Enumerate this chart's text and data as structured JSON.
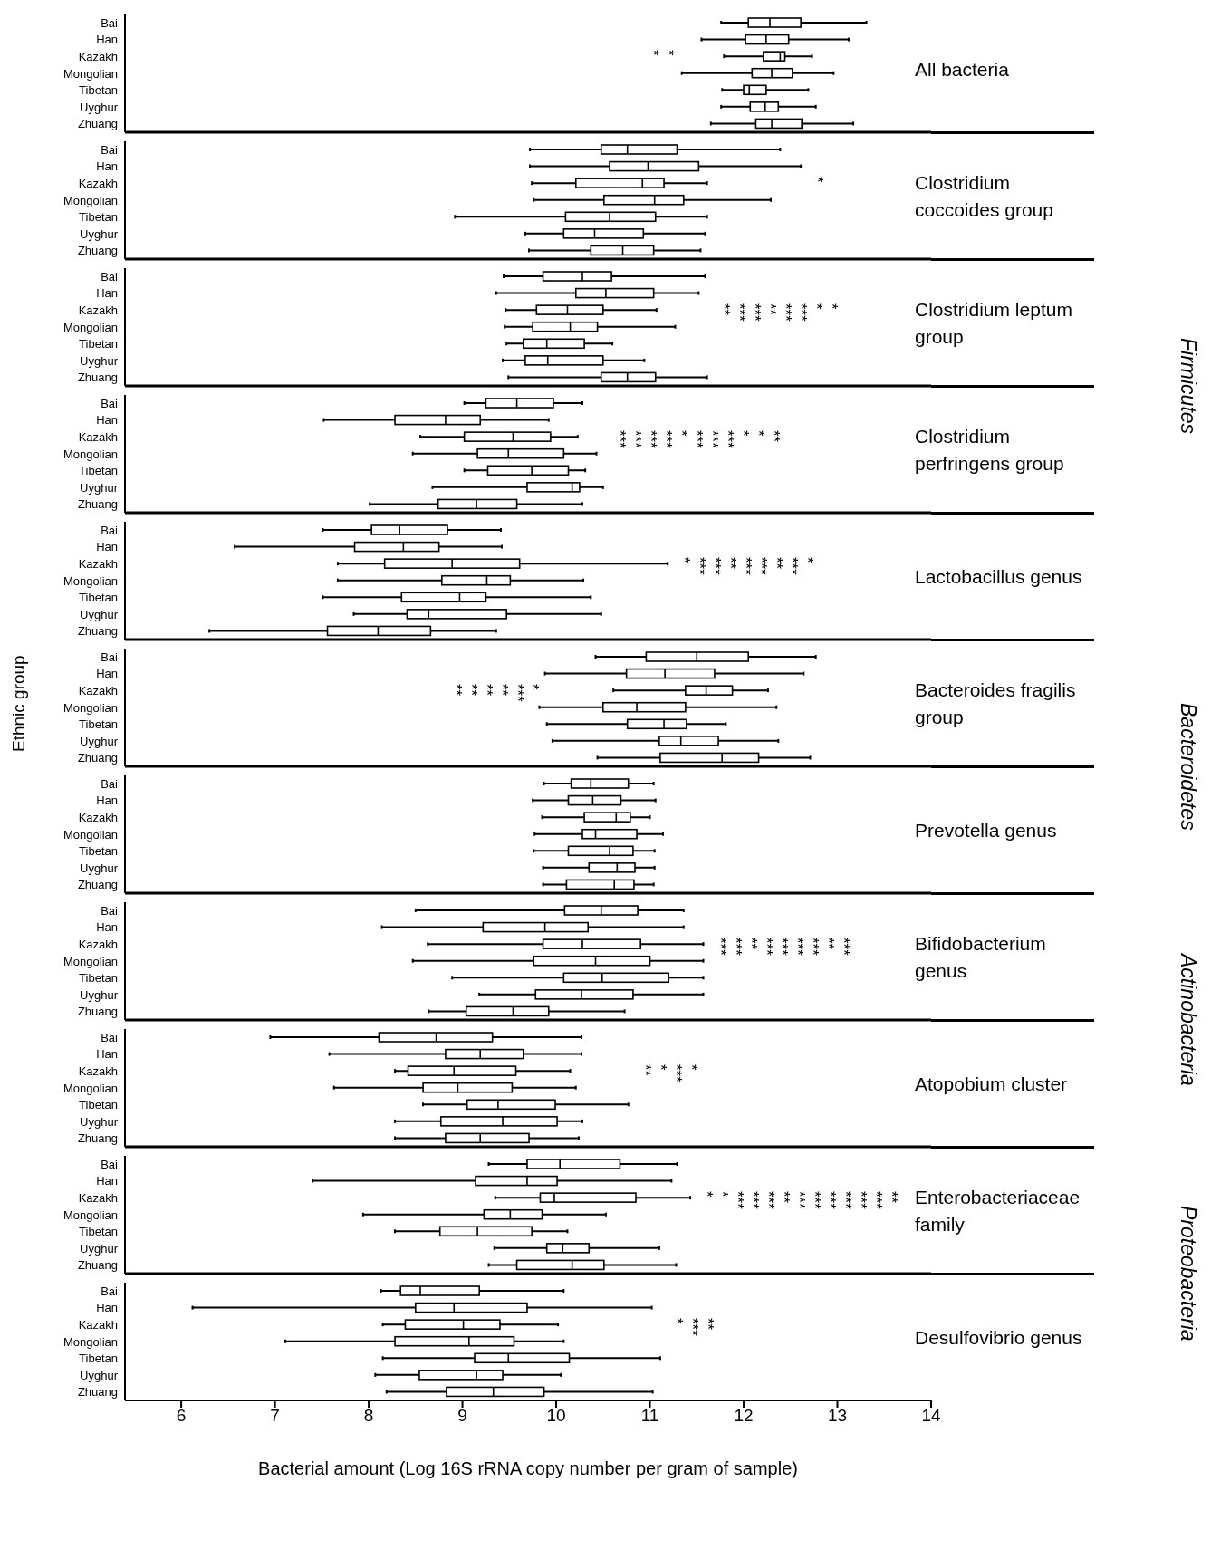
{
  "chart_data": [
    {
      "type": "box",
      "orientation": "horizontal",
      "title": "All bacteria",
      "tick_labels": "y",
      "xlim": [
        5.4,
        14
      ],
      "categories": [
        "Bai",
        "Han",
        "Kazakh",
        "Mongolian",
        "Tibetan",
        "Uyghur",
        "Zhuang"
      ],
      "annotations": [
        "*",
        "*"
      ],
      "boxes": [
        {
          "low": 11.76,
          "q1": 12.05,
          "median": 12.28,
          "q3": 12.61,
          "high": 13.31
        },
        {
          "low": 11.55,
          "q1": 12.02,
          "median": 12.24,
          "q3": 12.48,
          "high": 13.12
        },
        {
          "low": 11.79,
          "q1": 12.21,
          "median": 12.39,
          "q3": 12.44,
          "high": 12.73
        },
        {
          "low": 11.34,
          "q1": 12.09,
          "median": 12.3,
          "q3": 12.52,
          "high": 12.96
        },
        {
          "low": 11.77,
          "q1": 12.0,
          "median": 12.06,
          "q3": 12.24,
          "high": 12.69
        },
        {
          "low": 11.76,
          "q1": 12.07,
          "median": 12.23,
          "q3": 12.37,
          "high": 12.77
        },
        {
          "low": 11.65,
          "q1": 12.13,
          "median": 12.3,
          "q3": 12.62,
          "high": 13.17
        }
      ]
    },
    {
      "type": "box",
      "orientation": "horizontal",
      "title": "Clostridium coccoides group",
      "tick_labels": "y",
      "xlim": [
        5.4,
        14
      ],
      "categories": [
        "Bai",
        "Han",
        "Kazakh",
        "Mongolian",
        "Tibetan",
        "Uyghur",
        "Zhuang"
      ],
      "annotations": [
        "*"
      ],
      "boxes": [
        {
          "low": 9.72,
          "q1": 10.48,
          "median": 10.76,
          "q3": 11.29,
          "high": 12.39
        },
        {
          "low": 9.72,
          "q1": 10.57,
          "median": 10.98,
          "q3": 11.52,
          "high": 12.61
        },
        {
          "low": 9.74,
          "q1": 10.21,
          "median": 10.92,
          "q3": 11.15,
          "high": 11.61
        },
        {
          "low": 9.76,
          "q1": 10.51,
          "median": 11.05,
          "q3": 11.36,
          "high": 12.29
        },
        {
          "low": 8.92,
          "q1": 10.1,
          "median": 10.57,
          "q3": 11.06,
          "high": 11.61
        },
        {
          "low": 9.67,
          "q1": 10.08,
          "median": 10.41,
          "q3": 10.93,
          "high": 11.59
        },
        {
          "low": 9.71,
          "q1": 10.37,
          "median": 10.71,
          "q3": 11.04,
          "high": 11.54
        }
      ]
    },
    {
      "type": "box",
      "orientation": "horizontal",
      "title": "Clostridium leptum group",
      "y2label": "Firmicutes",
      "tick_labels": "y",
      "xlim": [
        5.4,
        14
      ],
      "categories": [
        "Bai",
        "Han",
        "Kazakh",
        "Mongolian",
        "Tibetan",
        "Uyghur",
        "Zhuang"
      ],
      "annotations": [
        "**",
        "***",
        "***",
        "**",
        "***",
        "***",
        "*",
        "*"
      ],
      "boxes": [
        {
          "low": 9.44,
          "q1": 9.86,
          "median": 10.28,
          "q3": 10.59,
          "high": 11.59
        },
        {
          "low": 9.36,
          "q1": 10.21,
          "median": 10.53,
          "q3": 11.04,
          "high": 11.52
        },
        {
          "low": 9.46,
          "q1": 9.79,
          "median": 10.12,
          "q3": 10.5,
          "high": 11.07
        },
        {
          "low": 9.45,
          "q1": 9.75,
          "median": 10.15,
          "q3": 10.44,
          "high": 11.27
        },
        {
          "low": 9.47,
          "q1": 9.65,
          "median": 9.9,
          "q3": 10.3,
          "high": 10.6
        },
        {
          "low": 9.43,
          "q1": 9.67,
          "median": 9.91,
          "q3": 10.5,
          "high": 10.94
        },
        {
          "low": 9.49,
          "q1": 10.48,
          "median": 10.76,
          "q3": 11.06,
          "high": 11.61
        }
      ]
    },
    {
      "type": "box",
      "orientation": "horizontal",
      "title": "Clostridium perfringens group",
      "tick_labels": "y",
      "xlim": [
        5.4,
        14
      ],
      "categories": [
        "Bai",
        "Han",
        "Kazakh",
        "Mongolian",
        "Tibetan",
        "Uyghur",
        "Zhuang"
      ],
      "annotations": [
        "***",
        "***",
        "***",
        "***",
        "*",
        "***",
        "***",
        "***",
        "*",
        "*",
        "**"
      ],
      "boxes": [
        {
          "low": 9.02,
          "q1": 9.25,
          "median": 9.58,
          "q3": 9.97,
          "high": 10.28
        },
        {
          "low": 7.52,
          "q1": 8.28,
          "median": 8.82,
          "q3": 9.19,
          "high": 9.92
        },
        {
          "low": 8.55,
          "q1": 9.02,
          "median": 9.54,
          "q3": 9.94,
          "high": 10.23
        },
        {
          "low": 8.47,
          "q1": 9.16,
          "median": 9.49,
          "q3": 10.08,
          "high": 10.43
        },
        {
          "low": 9.02,
          "q1": 9.27,
          "median": 9.74,
          "q3": 10.13,
          "high": 10.31
        },
        {
          "low": 8.68,
          "q1": 9.69,
          "median": 10.17,
          "q3": 10.25,
          "high": 10.5
        },
        {
          "low": 8.01,
          "q1": 8.74,
          "median": 9.15,
          "q3": 9.58,
          "high": 10.28
        }
      ]
    },
    {
      "type": "box",
      "orientation": "horizontal",
      "title": "Lactobacillus genus",
      "tick_labels": "y",
      "xlim": [
        5.4,
        14
      ],
      "categories": [
        "Bai",
        "Han",
        "Kazakh",
        "Mongolian",
        "Tibetan",
        "Uyghur",
        "Zhuang"
      ],
      "annotations": [
        "*",
        "***",
        "***",
        "**",
        "***",
        "***",
        "**",
        "***",
        "*"
      ],
      "boxes": [
        {
          "low": 7.51,
          "q1": 8.03,
          "median": 8.33,
          "q3": 8.84,
          "high": 9.41
        },
        {
          "low": 6.57,
          "q1": 7.85,
          "median": 8.37,
          "q3": 8.75,
          "high": 9.42
        },
        {
          "low": 7.67,
          "q1": 8.17,
          "median": 8.89,
          "q3": 9.61,
          "high": 11.19
        },
        {
          "low": 7.67,
          "q1": 8.78,
          "median": 9.26,
          "q3": 9.51,
          "high": 10.29
        },
        {
          "low": 7.51,
          "q1": 8.35,
          "median": 8.97,
          "q3": 9.25,
          "high": 10.37
        },
        {
          "low": 7.84,
          "q1": 8.41,
          "median": 8.64,
          "q3": 9.47,
          "high": 10.48
        },
        {
          "low": 6.3,
          "q1": 7.56,
          "median": 8.1,
          "q3": 8.66,
          "high": 9.36
        }
      ]
    },
    {
      "type": "box",
      "orientation": "horizontal",
      "title": "Bacteroides fragilis group",
      "ylabel": "Ethnic group",
      "y2label": "Bacteroidetes",
      "tick_labels": "y",
      "xlim": [
        5.4,
        14
      ],
      "categories": [
        "Bai",
        "Han",
        "Kazakh",
        "Mongolian",
        "Tibetan",
        "Uyghur",
        "Zhuang"
      ],
      "annotations": [
        "**",
        "**",
        "**",
        "**",
        "***",
        "*"
      ],
      "boxes": [
        {
          "low": 10.42,
          "q1": 10.96,
          "median": 11.5,
          "q3": 12.05,
          "high": 12.77
        },
        {
          "low": 9.88,
          "q1": 10.75,
          "median": 11.16,
          "q3": 11.69,
          "high": 12.64
        },
        {
          "low": 10.61,
          "q1": 11.38,
          "median": 11.6,
          "q3": 11.88,
          "high": 12.26
        },
        {
          "low": 9.82,
          "q1": 10.5,
          "median": 10.86,
          "q3": 11.38,
          "high": 12.35
        },
        {
          "low": 9.9,
          "q1": 10.76,
          "median": 11.15,
          "q3": 11.39,
          "high": 11.81
        },
        {
          "low": 9.96,
          "q1": 11.1,
          "median": 11.33,
          "q3": 11.73,
          "high": 12.37
        },
        {
          "low": 10.44,
          "q1": 11.11,
          "median": 11.77,
          "q3": 12.16,
          "high": 12.71
        }
      ]
    },
    {
      "type": "box",
      "orientation": "horizontal",
      "title": "Prevotella genus",
      "tick_labels": "y",
      "xlim": [
        5.4,
        14
      ],
      "categories": [
        "Bai",
        "Han",
        "Kazakh",
        "Mongolian",
        "Tibetan",
        "Uyghur",
        "Zhuang"
      ],
      "boxes": [
        {
          "low": 9.87,
          "q1": 10.16,
          "median": 10.37,
          "q3": 10.77,
          "high": 11.04
        },
        {
          "low": 9.75,
          "q1": 10.13,
          "median": 10.39,
          "q3": 10.69,
          "high": 11.06
        },
        {
          "low": 9.85,
          "q1": 10.3,
          "median": 10.64,
          "q3": 10.79,
          "high": 11.0
        },
        {
          "low": 9.77,
          "q1": 10.28,
          "median": 10.42,
          "q3": 10.86,
          "high": 11.14
        },
        {
          "low": 9.76,
          "q1": 10.13,
          "median": 10.57,
          "q3": 10.82,
          "high": 11.05
        },
        {
          "low": 9.86,
          "q1": 10.35,
          "median": 10.65,
          "q3": 10.84,
          "high": 11.05
        },
        {
          "low": 9.86,
          "q1": 10.11,
          "median": 10.62,
          "q3": 10.83,
          "high": 11.04
        }
      ]
    },
    {
      "type": "box",
      "orientation": "horizontal",
      "title": "Bifidobacterium genus",
      "y2label": "Actinobacteria",
      "tick_labels": "y",
      "xlim": [
        5.4,
        14
      ],
      "categories": [
        "Bai",
        "Han",
        "Kazakh",
        "Mongolian",
        "Tibetan",
        "Uyghur",
        "Zhuang"
      ],
      "annotations": [
        "***",
        "***",
        "**",
        "***",
        "***",
        "***",
        "***",
        "**",
        "***"
      ],
      "boxes": [
        {
          "low": 8.5,
          "q1": 10.09,
          "median": 10.48,
          "q3": 10.87,
          "high": 11.36
        },
        {
          "low": 8.14,
          "q1": 9.22,
          "median": 9.88,
          "q3": 10.34,
          "high": 11.36
        },
        {
          "low": 8.63,
          "q1": 9.86,
          "median": 10.28,
          "q3": 10.9,
          "high": 11.57
        },
        {
          "low": 8.47,
          "q1": 9.76,
          "median": 10.42,
          "q3": 11.0,
          "high": 11.57
        },
        {
          "low": 8.89,
          "q1": 10.08,
          "median": 10.49,
          "q3": 11.2,
          "high": 11.57
        },
        {
          "low": 9.18,
          "q1": 9.78,
          "median": 10.27,
          "q3": 10.82,
          "high": 11.57
        },
        {
          "low": 8.64,
          "q1": 9.04,
          "median": 9.54,
          "q3": 9.92,
          "high": 10.73
        }
      ]
    },
    {
      "type": "box",
      "orientation": "horizontal",
      "title": "Atopobium cluster",
      "tick_labels": "y",
      "xlim": [
        5.4,
        14
      ],
      "categories": [
        "Bai",
        "Han",
        "Kazakh",
        "Mongolian",
        "Tibetan",
        "Uyghur",
        "Zhuang"
      ],
      "annotations": [
        "**",
        "*",
        "***",
        "*"
      ],
      "boxes": [
        {
          "low": 6.95,
          "q1": 8.11,
          "median": 8.72,
          "q3": 9.32,
          "high": 10.27
        },
        {
          "low": 7.58,
          "q1": 8.82,
          "median": 9.19,
          "q3": 9.65,
          "high": 10.27
        },
        {
          "low": 8.28,
          "q1": 8.42,
          "median": 8.91,
          "q3": 9.57,
          "high": 10.15
        },
        {
          "low": 7.63,
          "q1": 8.58,
          "median": 8.95,
          "q3": 9.53,
          "high": 10.21
        },
        {
          "low": 8.58,
          "q1": 9.05,
          "median": 9.38,
          "q3": 9.99,
          "high": 10.77
        },
        {
          "low": 8.28,
          "q1": 8.77,
          "median": 9.43,
          "q3": 10.01,
          "high": 10.28
        },
        {
          "low": 8.28,
          "q1": 8.82,
          "median": 9.19,
          "q3": 9.71,
          "high": 10.24
        }
      ]
    },
    {
      "type": "box",
      "orientation": "horizontal",
      "title": "Enterobacteriaceae family",
      "y2label": "Proteobacteria",
      "tick_labels": "y",
      "xlim": [
        5.4,
        14
      ],
      "categories": [
        "Bai",
        "Han",
        "Kazakh",
        "Mongolian",
        "Tibetan",
        "Uyghur",
        "Zhuang"
      ],
      "annotations": [
        "*",
        "*",
        "***",
        "***",
        "***",
        "**",
        "***",
        "***",
        "***",
        "***",
        "***",
        "***",
        "**"
      ],
      "boxes": [
        {
          "low": 9.28,
          "q1": 9.69,
          "median": 10.04,
          "q3": 10.68,
          "high": 11.29
        },
        {
          "low": 7.4,
          "q1": 9.14,
          "median": 9.69,
          "q3": 10.01,
          "high": 11.23
        },
        {
          "low": 9.35,
          "q1": 9.83,
          "median": 9.98,
          "q3": 10.85,
          "high": 11.43
        },
        {
          "low": 7.94,
          "q1": 9.23,
          "median": 9.51,
          "q3": 9.85,
          "high": 10.53
        },
        {
          "low": 8.28,
          "q1": 8.76,
          "median": 9.16,
          "q3": 9.74,
          "high": 10.12
        },
        {
          "low": 9.34,
          "q1": 9.9,
          "median": 10.07,
          "q3": 10.35,
          "high": 11.1
        },
        {
          "low": 9.28,
          "q1": 9.58,
          "median": 10.17,
          "q3": 10.51,
          "high": 11.28
        }
      ]
    },
    {
      "type": "box",
      "orientation": "horizontal",
      "title": "Desulfovibrio genus",
      "xlabel": "Bacterial amount (Log 16S rRNA copy number per gram of sample)",
      "xlim": [
        5.4,
        14
      ],
      "xticks": [
        6,
        7,
        8,
        9,
        10,
        11,
        12,
        13,
        14
      ],
      "categories": [
        "Bai",
        "Han",
        "Kazakh",
        "Mongolian",
        "Tibetan",
        "Uyghur",
        "Zhuang"
      ],
      "annotations": [
        "*",
        "***",
        "**"
      ],
      "boxes": [
        {
          "low": 8.13,
          "q1": 8.34,
          "median": 8.55,
          "q3": 9.18,
          "high": 10.08
        },
        {
          "low": 6.12,
          "q1": 8.5,
          "median": 8.91,
          "q3": 9.69,
          "high": 11.02
        },
        {
          "low": 8.15,
          "q1": 8.39,
          "median": 9.01,
          "q3": 9.4,
          "high": 10.02
        },
        {
          "low": 7.11,
          "q1": 8.28,
          "median": 9.07,
          "q3": 9.55,
          "high": 10.08
        },
        {
          "low": 8.15,
          "q1": 9.13,
          "median": 9.49,
          "q3": 10.14,
          "high": 11.11
        },
        {
          "low": 8.07,
          "q1": 8.54,
          "median": 9.15,
          "q3": 9.43,
          "high": 10.05
        },
        {
          "low": 8.19,
          "q1": 8.83,
          "median": 9.33,
          "q3": 9.87,
          "high": 11.03
        }
      ]
    }
  ]
}
